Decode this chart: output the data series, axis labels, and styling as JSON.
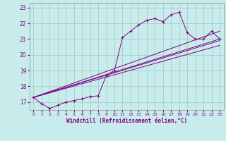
{
  "xlabel": "Windchill (Refroidissement éolien,°C)",
  "bg_color": "#c8ecec",
  "line_color": "#800080",
  "grid_color": "#a0c8c8",
  "x_values": [
    0,
    1,
    2,
    3,
    4,
    5,
    6,
    7,
    8,
    9,
    10,
    11,
    12,
    13,
    14,
    15,
    16,
    17,
    18,
    19,
    20,
    21,
    22,
    23
  ],
  "main_y": [
    17.3,
    16.9,
    16.6,
    16.8,
    17.0,
    17.1,
    17.2,
    17.35,
    17.4,
    18.7,
    19.0,
    21.1,
    21.5,
    21.9,
    22.2,
    22.3,
    22.1,
    22.55,
    22.7,
    21.4,
    21.0,
    21.0,
    21.5,
    21.0
  ],
  "straight_lines": [
    {
      "x0": 0,
      "y0": 17.3,
      "x1": 23,
      "y1": 21.0
    },
    {
      "x0": 0,
      "y0": 17.3,
      "x1": 23,
      "y1": 21.5
    },
    {
      "x0": 0,
      "y0": 17.3,
      "x1": 23,
      "y1": 20.6
    },
    {
      "x0": 0,
      "y0": 17.3,
      "x1": 23,
      "y1": 20.9
    }
  ],
  "ylim": [
    16.5,
    23.3
  ],
  "xlim": [
    -0.5,
    23.5
  ],
  "yticks": [
    17,
    18,
    19,
    20,
    21,
    22,
    23
  ],
  "xticks": [
    0,
    1,
    2,
    3,
    4,
    5,
    6,
    7,
    8,
    9,
    10,
    11,
    12,
    13,
    14,
    15,
    16,
    17,
    18,
    19,
    20,
    21,
    22,
    23
  ]
}
